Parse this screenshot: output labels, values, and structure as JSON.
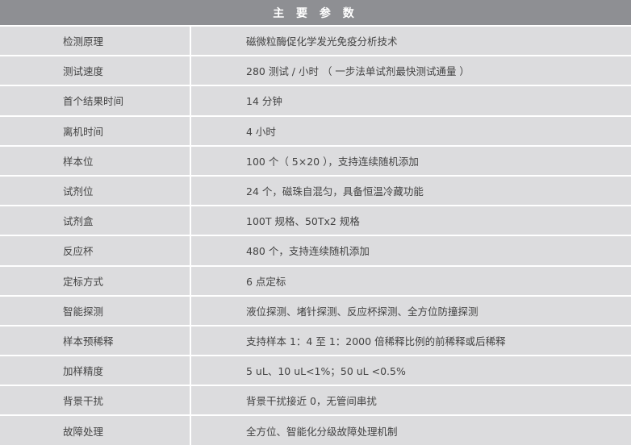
{
  "title": "主 要 参 数",
  "rows": [
    {
      "label": "检测原理",
      "value": "磁微粒酶促化学发光免疫分析技术"
    },
    {
      "label": "测试速度",
      "value": "280 测试 / 小时 （ 一步法单试剂最快测试通量 ）"
    },
    {
      "label": "首个结果时间",
      "value": "14 分钟"
    },
    {
      "label": "离机时间",
      "value": "4 小时"
    },
    {
      "label": "样本位",
      "value": "100 个（ 5×20 ），支持连续随机添加"
    },
    {
      "label": "试剂位",
      "value": "24 个，磁珠自混匀，具备恒温冷藏功能"
    },
    {
      "label": "试剂盒",
      "value": "100T 规格、50Tx2 规格"
    },
    {
      "label": "反应杯",
      "value": "480 个，支持连续随机添加"
    },
    {
      "label": "定标方式",
      "value": "6 点定标"
    },
    {
      "label": "智能探测",
      "value": "液位探测、堵针探测、反应杯探测、全方位防撞探测"
    },
    {
      "label": "样本预稀释",
      "value": "支持样本 1：4 至 1：2000 倍稀释比例的前稀释或后稀释"
    },
    {
      "label": "加样精度",
      "value": "5 uL、10 uL<1%；50 uL <0.5%"
    },
    {
      "label": "背景干扰",
      "value": "背景干扰接近 0，无管间串扰"
    },
    {
      "label": "故障处理",
      "value": "全方位、智能化分级故障处理机制"
    }
  ]
}
